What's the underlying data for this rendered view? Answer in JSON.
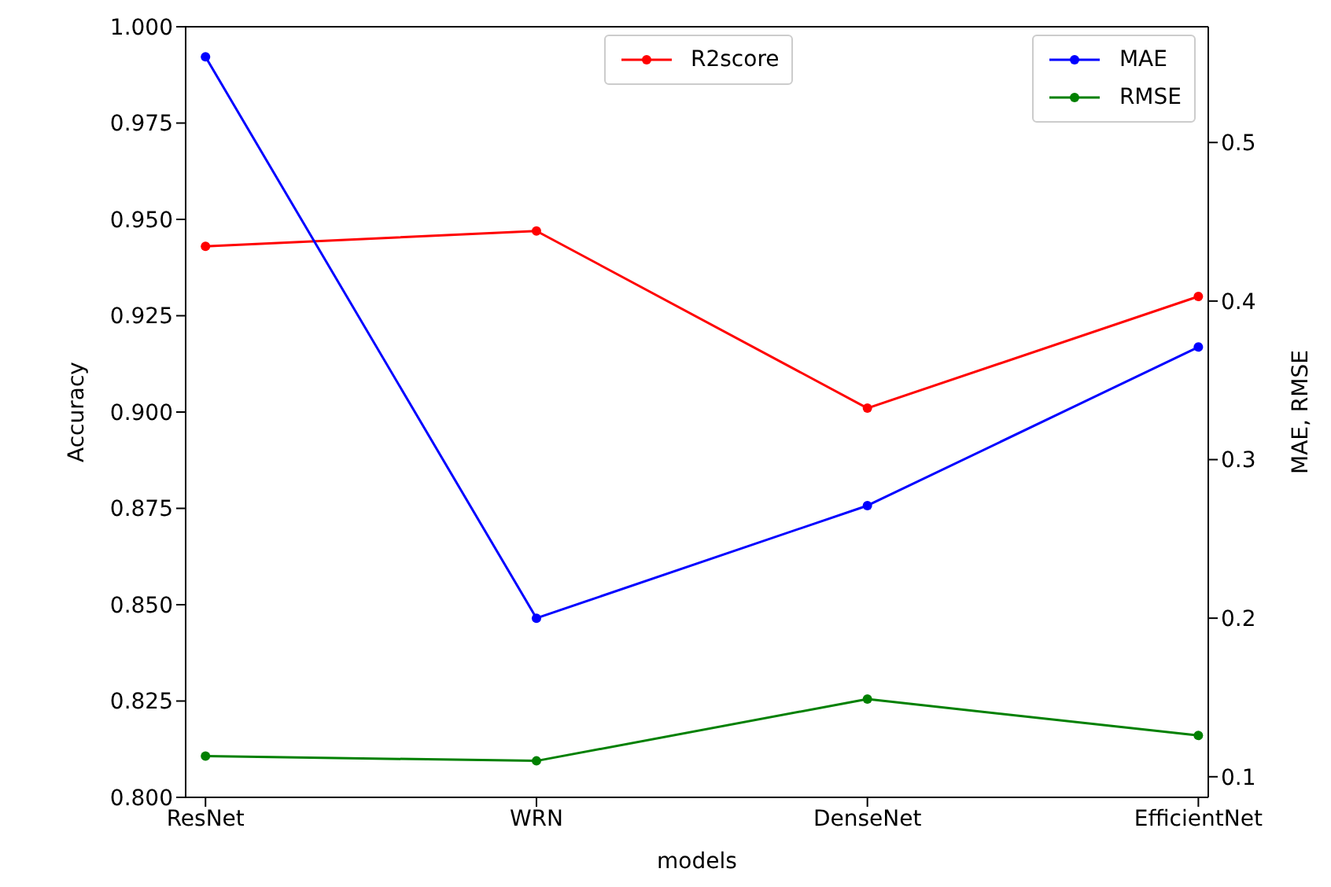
{
  "chart_data": {
    "type": "line",
    "xlabel": "models",
    "ylabel": "Accuracy",
    "y2label": "MAE, RMSE",
    "categories": [
      "ResNet",
      "WRN",
      "DenseNet",
      "EfficientNet"
    ],
    "series": [
      {
        "name": "R2score",
        "color": "#ff0000",
        "values": [
          0.943,
          0.947,
          0.901,
          0.93
        ]
      },
      {
        "name": "MAE",
        "color": "#0000ff",
        "axis": "y2",
        "values": [
          0.554,
          0.2,
          0.271,
          0.371
        ]
      },
      {
        "name": "RMSE",
        "color": "#008000",
        "axis": "y2",
        "values": [
          0.113,
          0.11,
          0.149,
          0.126
        ]
      }
    ],
    "ylim": [
      0.8,
      1.0
    ],
    "yticks": [
      {
        "value": 0.8,
        "label": "0.800"
      },
      {
        "value": 0.825,
        "label": "0.825"
      },
      {
        "value": 0.85,
        "label": "0.850"
      },
      {
        "value": 0.875,
        "label": "0.875"
      },
      {
        "value": 0.9,
        "label": "0.900"
      },
      {
        "value": 0.925,
        "label": "0.925"
      },
      {
        "value": 0.95,
        "label": "0.950"
      },
      {
        "value": 0.975,
        "label": "0.975"
      },
      {
        "value": 1.0,
        "label": "1.000"
      }
    ],
    "y2lim": [
      0.087,
      0.573
    ],
    "y2ticks": [
      0.1,
      0.2,
      0.3,
      0.4,
      0.5
    ],
    "marker": "circle",
    "line_style": "solid",
    "legend": "top right"
  }
}
